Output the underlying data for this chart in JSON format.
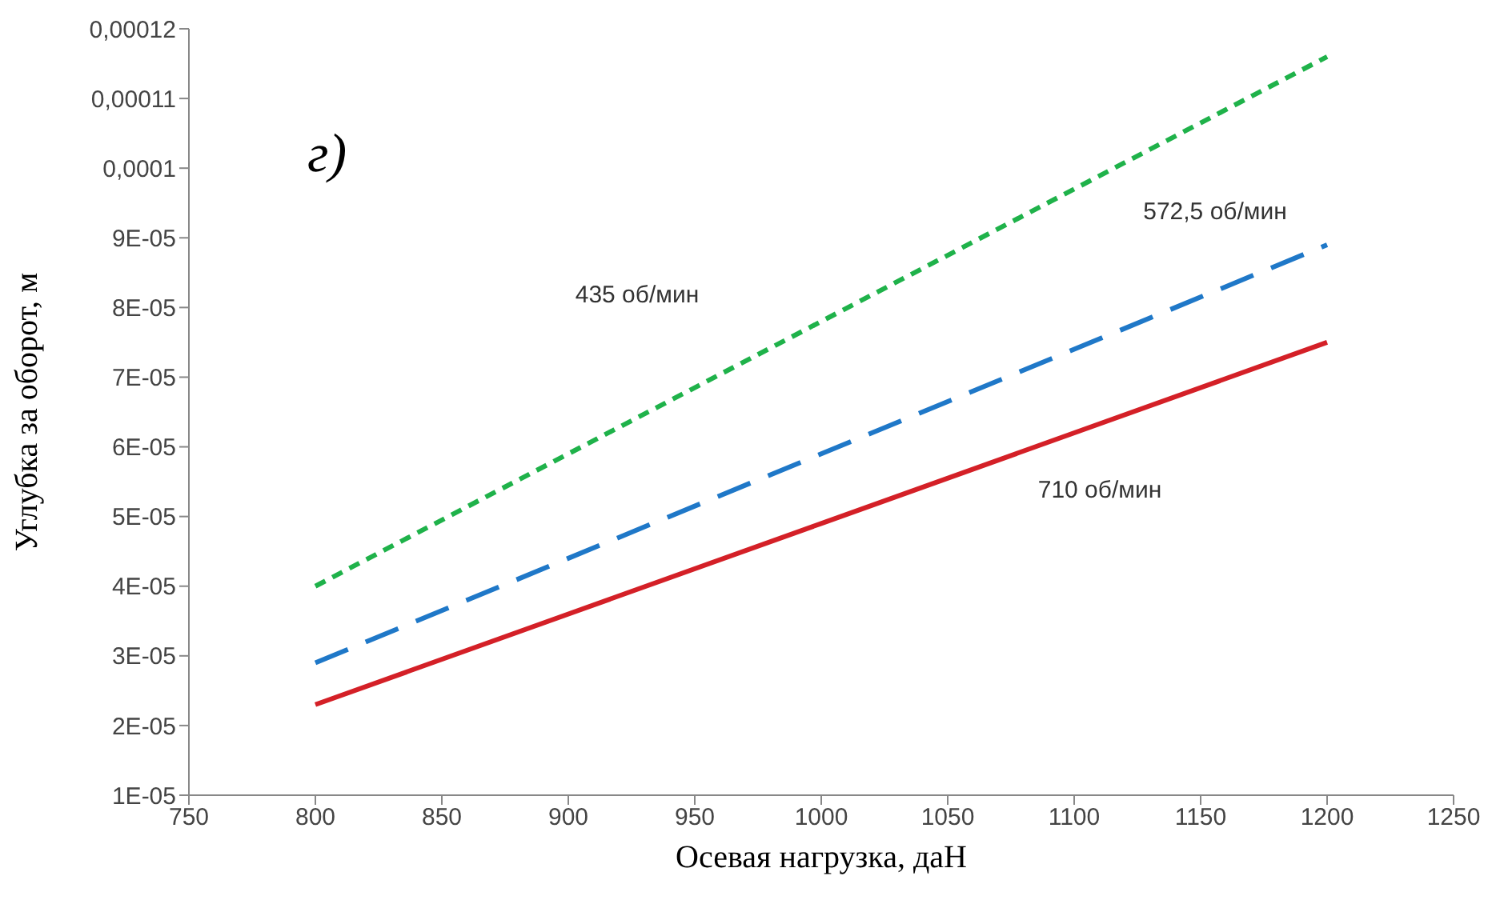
{
  "chart_data": {
    "type": "line",
    "xlabel": "Осевая нагрузка, даН",
    "ylabel": "Углубка за оборот, м",
    "annotations": [
      "г)"
    ],
    "xlim": [
      750,
      1250
    ],
    "xticks": [
      750,
      800,
      850,
      900,
      950,
      1000,
      1050,
      1100,
      1150,
      1200,
      1250
    ],
    "ylim": [
      1e-05,
      0.00012
    ],
    "yticks": [
      {
        "value": 1e-05,
        "label": "1E-05"
      },
      {
        "value": 2e-05,
        "label": "2E-05"
      },
      {
        "value": 3e-05,
        "label": "3E-05"
      },
      {
        "value": 4e-05,
        "label": "4E-05"
      },
      {
        "value": 5e-05,
        "label": "5E-05"
      },
      {
        "value": 6e-05,
        "label": "6E-05"
      },
      {
        "value": 7e-05,
        "label": "7E-05"
      },
      {
        "value": 8e-05,
        "label": "8E-05"
      },
      {
        "value": 9e-05,
        "label": "9E-05"
      },
      {
        "value": 0.0001,
        "label": "0,0001"
      },
      {
        "value": 0.00011,
        "label": "0,00011"
      },
      {
        "value": 0.00012,
        "label": "0,00012"
      }
    ],
    "grid": false,
    "legend": false,
    "series": [
      {
        "name": "435 об/мин",
        "color": "#1fb24a",
        "line_style": "dotted",
        "x": [
          800,
          1000,
          1200
        ],
        "values": [
          4e-05,
          7.8e-05,
          0.000116
        ]
      },
      {
        "name": "572,5 об/мин",
        "color": "#1f78c8",
        "line_style": "dashed",
        "x": [
          800,
          1000,
          1200
        ],
        "values": [
          2.9e-05,
          5.9e-05,
          8.9e-05
        ]
      },
      {
        "name": "710 об/мин",
        "color": "#d42027",
        "line_style": "solid",
        "x": [
          800,
          1000,
          1200
        ],
        "values": [
          2.3e-05,
          4.9e-05,
          7.5e-05
        ]
      }
    ]
  }
}
